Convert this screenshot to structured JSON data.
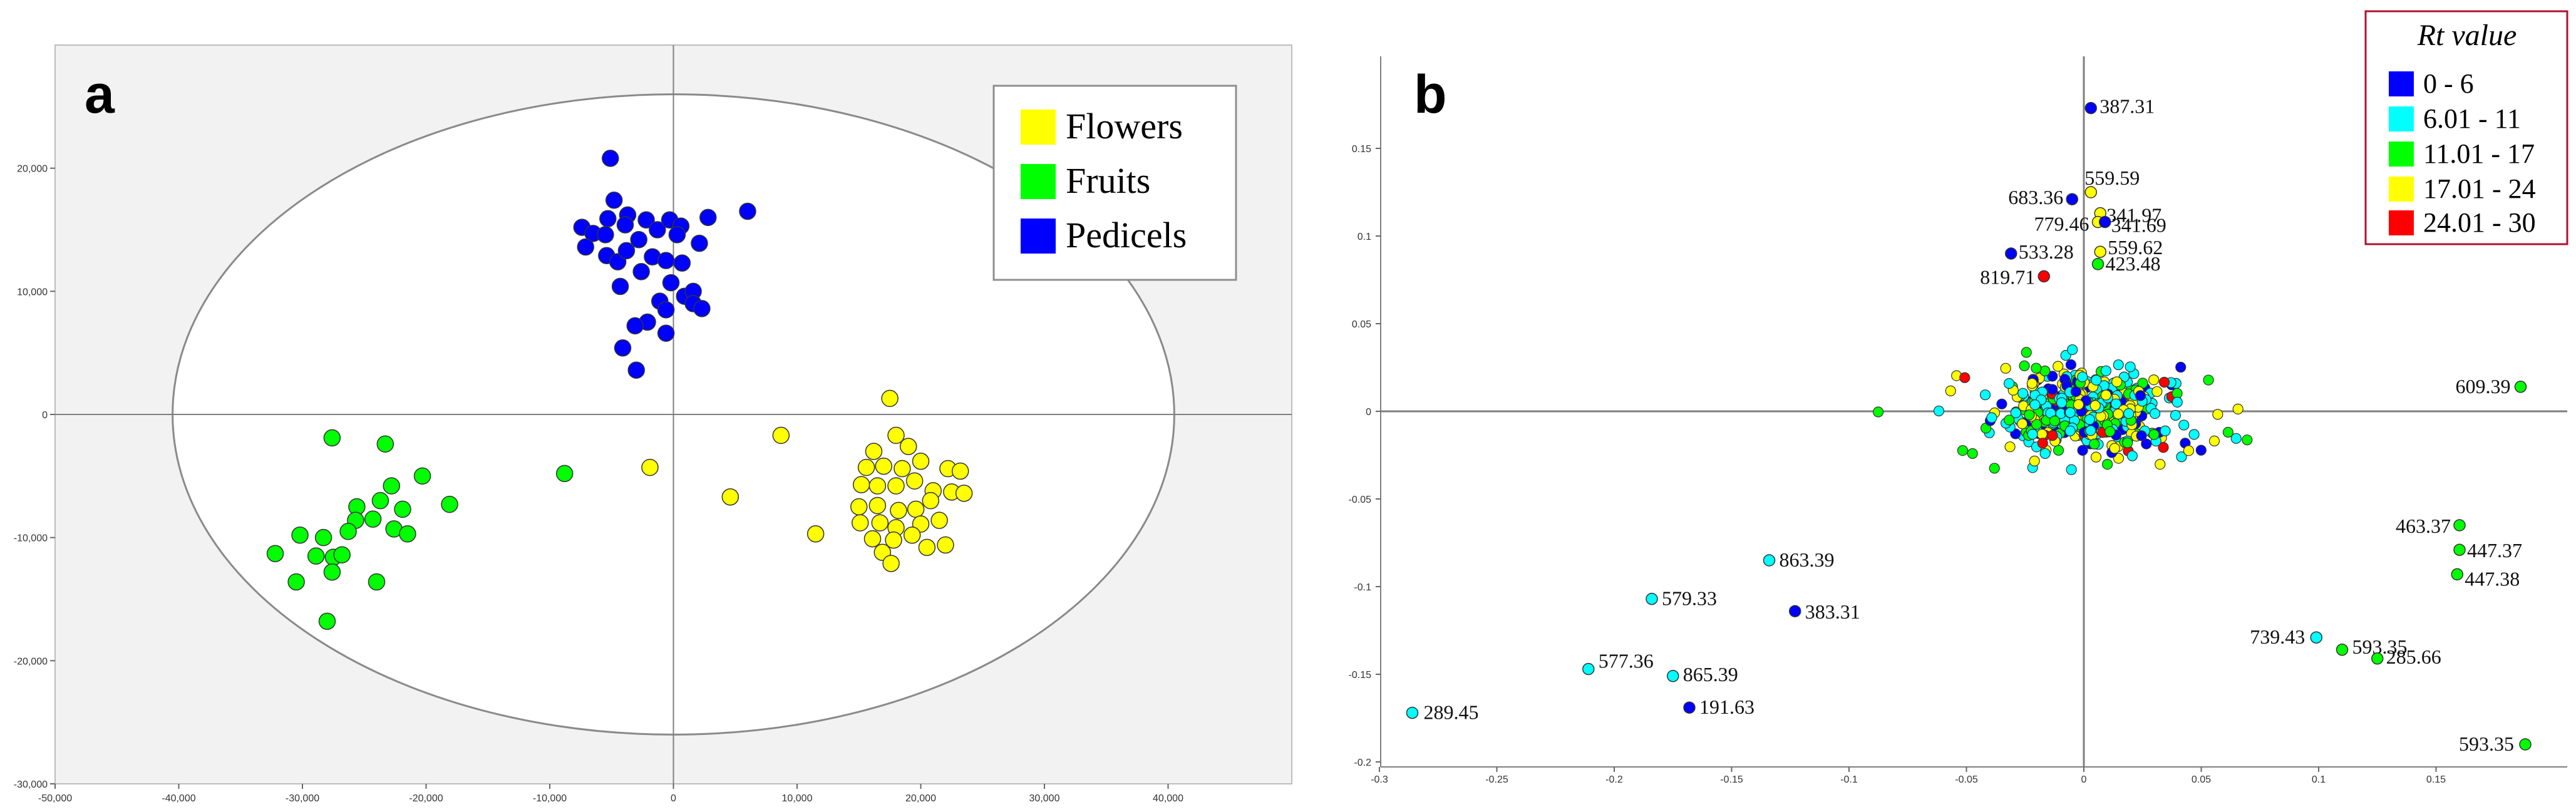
{
  "panels": {
    "a": {
      "label": "a",
      "legend": [
        {
          "name": "Flowers",
          "color": "#ffff00"
        },
        {
          "name": "Fruits",
          "color": "#00ff00"
        },
        {
          "name": "Pedicels",
          "color": "#0000ff"
        }
      ],
      "x_ticks": [
        "-50,000",
        "-40,000",
        "-30,000",
        "-20,000",
        "-10,000",
        "0",
        "10,000",
        "20,000",
        "30,000",
        "40,000"
      ],
      "y_ticks": [
        "20,000",
        "10,000",
        "0",
        "-10,000",
        "-20,000",
        "-30,000"
      ]
    },
    "b": {
      "label": "b",
      "legend_title": "Rt value",
      "legend": [
        {
          "name": "0 - 6",
          "color": "#0000ff"
        },
        {
          "name": "6.01 - 11",
          "color": "#00ffff"
        },
        {
          "name": "11.01 - 17",
          "color": "#00ff00"
        },
        {
          "name": "17.01 - 24",
          "color": "#ffff00"
        },
        {
          "name": "24.01 - 30",
          "color": "#ff0000"
        }
      ],
      "x_ticks": [
        "-0.3",
        "-0.25",
        "-0.2",
        "-0.15",
        "-0.1",
        "-0.05",
        "0",
        "0.05",
        "0.1",
        "0.15"
      ],
      "y_ticks": [
        "0.15",
        "0.1",
        "0.05",
        "0",
        "-0.05",
        "-0.1",
        "-0.15",
        "-0.2"
      ]
    }
  },
  "chart_data": [
    {
      "type": "scatter",
      "panel": "a",
      "title": "",
      "xlabel": "",
      "ylabel": "",
      "xlim": [
        -50000,
        50000
      ],
      "ylim": [
        -30000,
        30000
      ],
      "grid": false,
      "legend_position": "top-right",
      "confidence_ellipse": {
        "center": [
          0,
          0
        ],
        "semi_x": 40500,
        "semi_y": 26000
      },
      "series": [
        {
          "name": "Flowers",
          "color": "#ffff00",
          "points": [
            [
              17500,
              1300
            ],
            [
              18000,
              -1700
            ],
            [
              19000,
              -2600
            ],
            [
              16200,
              -3000
            ],
            [
              15600,
              -4300
            ],
            [
              17000,
              -4200
            ],
            [
              18500,
              -4400
            ],
            [
              20000,
              -3800
            ],
            [
              22200,
              -4400
            ],
            [
              23200,
              -4600
            ],
            [
              15200,
              -5700
            ],
            [
              16500,
              -5800
            ],
            [
              18000,
              -5800
            ],
            [
              19500,
              -5400
            ],
            [
              21000,
              -6200
            ],
            [
              22500,
              -6300
            ],
            [
              23500,
              -6400
            ],
            [
              15000,
              -7500
            ],
            [
              16500,
              -7400
            ],
            [
              18200,
              -7800
            ],
            [
              19600,
              -7700
            ],
            [
              20800,
              -7000
            ],
            [
              15100,
              -8800
            ],
            [
              16700,
              -8800
            ],
            [
              18000,
              -9200
            ],
            [
              20000,
              -8900
            ],
            [
              21500,
              -8600
            ],
            [
              16100,
              -10100
            ],
            [
              17800,
              -10200
            ],
            [
              19300,
              -9800
            ],
            [
              11500,
              -9700
            ],
            [
              16900,
              -11200
            ],
            [
              17600,
              -12100
            ],
            [
              20500,
              -10800
            ],
            [
              22000,
              -10600
            ],
            [
              8700,
              -1700
            ],
            [
              4600,
              -6700
            ],
            [
              -1900,
              -4300
            ]
          ]
        },
        {
          "name": "Fruits",
          "color": "#00ff00",
          "points": [
            [
              -27600,
              -1900
            ],
            [
              -23300,
              -2400
            ],
            [
              -20300,
              -5000
            ],
            [
              -18100,
              -7300
            ],
            [
              -22800,
              -5800
            ],
            [
              -23700,
              -7000
            ],
            [
              -25600,
              -7500
            ],
            [
              -21900,
              -7700
            ],
            [
              -25700,
              -8600
            ],
            [
              -24300,
              -8500
            ],
            [
              -22600,
              -9300
            ],
            [
              -21500,
              -9700
            ],
            [
              -26300,
              -9500
            ],
            [
              -28300,
              -10000
            ],
            [
              -30200,
              -9800
            ],
            [
              -32200,
              -11300
            ],
            [
              -27500,
              -11600
            ],
            [
              -28900,
              -11500
            ],
            [
              -26800,
              -11400
            ],
            [
              -27600,
              -12800
            ],
            [
              -24000,
              -13600
            ],
            [
              -30500,
              -13600
            ],
            [
              -28000,
              -16800
            ],
            [
              -8800,
              -4800
            ]
          ]
        },
        {
          "name": "Pedicels",
          "color": "#0000ff",
          "points": [
            [
              -5100,
              20800
            ],
            [
              -4800,
              17400
            ],
            [
              -5300,
              15900
            ],
            [
              -3700,
              16200
            ],
            [
              -3900,
              15400
            ],
            [
              -2200,
              15800
            ],
            [
              -1300,
              15000
            ],
            [
              -300,
              15800
            ],
            [
              600,
              15300
            ],
            [
              2800,
              16000
            ],
            [
              6000,
              16500
            ],
            [
              -7400,
              15200
            ],
            [
              -6500,
              14700
            ],
            [
              -5500,
              14600
            ],
            [
              -2800,
              14200
            ],
            [
              300,
              14600
            ],
            [
              2100,
              13900
            ],
            [
              -7100,
              13600
            ],
            [
              -5400,
              12900
            ],
            [
              -4500,
              12400
            ],
            [
              -3800,
              13300
            ],
            [
              -1700,
              12800
            ],
            [
              -600,
              12500
            ],
            [
              700,
              12300
            ],
            [
              -2600,
              11600
            ],
            [
              -4300,
              10400
            ],
            [
              -200,
              10700
            ],
            [
              900,
              9600
            ],
            [
              1600,
              10000
            ],
            [
              -1100,
              9200
            ],
            [
              -600,
              8500
            ],
            [
              1600,
              9000
            ],
            [
              2300,
              8600
            ],
            [
              -2100,
              7500
            ],
            [
              -3100,
              7200
            ],
            [
              -600,
              6600
            ],
            [
              -4100,
              5400
            ],
            [
              -3000,
              3600
            ]
          ]
        }
      ]
    },
    {
      "type": "scatter",
      "panel": "b",
      "title": "",
      "xlabel": "",
      "ylabel": "",
      "xlim": [
        -0.3,
        0.2
      ],
      "ylim": [
        -0.2,
        0.2
      ],
      "grid": false,
      "legend_position": "top-right",
      "legend_title": "Rt value",
      "labeled_points": [
        {
          "label": "387.31",
          "x": 0.003,
          "y": 0.173,
          "rt": "0 - 6",
          "color": "#0000ff"
        },
        {
          "label": "559.59",
          "x": 0.003,
          "y": 0.125,
          "rt": "17.01 - 24",
          "color": "#ffff00"
        },
        {
          "label": "683.36",
          "x": -0.005,
          "y": 0.121,
          "rt": "0 - 6",
          "color": "#0000ff"
        },
        {
          "label": "341.97",
          "x": 0.007,
          "y": 0.113,
          "rt": "17.01 - 24",
          "color": "#ffff00"
        },
        {
          "label": "779.46",
          "x": 0.006,
          "y": 0.108,
          "rt": "17.01 - 24",
          "color": "#ffff00"
        },
        {
          "label": "341.69",
          "x": 0.009,
          "y": 0.108,
          "rt": "0 - 6",
          "color": "#0000ff"
        },
        {
          "label": "559.62",
          "x": 0.007,
          "y": 0.091,
          "rt": "17.01 - 24",
          "color": "#ffff00"
        },
        {
          "label": "533.28",
          "x": -0.031,
          "y": 0.09,
          "rt": "0 - 6",
          "color": "#0000ff"
        },
        {
          "label": "423.48",
          "x": 0.006,
          "y": 0.084,
          "rt": "11.01 - 17",
          "color": "#00ff00"
        },
        {
          "label": "819.71",
          "x": -0.017,
          "y": 0.077,
          "rt": "24.01 - 30",
          "color": "#ff0000"
        },
        {
          "label": "609.39",
          "x": 0.186,
          "y": 0.014,
          "rt": "11.01 - 17",
          "color": "#00ff00"
        },
        {
          "label": "463.37",
          "x": 0.16,
          "y": -0.065,
          "rt": "11.01 - 17",
          "color": "#00ff00"
        },
        {
          "label": "447.37",
          "x": 0.16,
          "y": -0.079,
          "rt": "11.01 - 17",
          "color": "#00ff00"
        },
        {
          "label": "447.38",
          "x": 0.159,
          "y": -0.093,
          "rt": "11.01 - 17",
          "color": "#00ff00"
        },
        {
          "label": "863.39",
          "x": -0.134,
          "y": -0.085,
          "rt": "6.01 - 11",
          "color": "#00ffff"
        },
        {
          "label": "579.33",
          "x": -0.184,
          "y": -0.107,
          "rt": "6.01 - 11",
          "color": "#00ffff"
        },
        {
          "label": "383.31",
          "x": -0.123,
          "y": -0.114,
          "rt": "0 - 6",
          "color": "#0000ff"
        },
        {
          "label": "739.43",
          "x": 0.099,
          "y": -0.129,
          "rt": "6.01 - 11",
          "color": "#00ffff"
        },
        {
          "label": "593.35",
          "x": 0.11,
          "y": -0.136,
          "rt": "11.01 - 17",
          "color": "#00ff00"
        },
        {
          "label": "285.66",
          "x": 0.125,
          "y": -0.141,
          "rt": "11.01 - 17",
          "color": "#00ff00"
        },
        {
          "label": "577.36",
          "x": -0.211,
          "y": -0.147,
          "rt": "6.01 - 11",
          "color": "#00ffff"
        },
        {
          "label": "865.39",
          "x": -0.175,
          "y": -0.151,
          "rt": "6.01 - 11",
          "color": "#00ffff"
        },
        {
          "label": "191.63",
          "x": -0.168,
          "y": -0.169,
          "rt": "0 - 6",
          "color": "#0000ff"
        },
        {
          "label": "289.45",
          "x": -0.286,
          "y": -0.172,
          "rt": "6.01 - 11",
          "color": "#00ffff"
        },
        {
          "label": "593.35",
          "x": 0.188,
          "y": -0.19,
          "rt": "11.01 - 17",
          "color": "#00ff00"
        }
      ],
      "unlabeled_cluster": {
        "description_count": 520,
        "center": [
          0.0,
          0.0
        ],
        "spread_x": [
          -0.1,
          0.13
        ],
        "spread_y": [
          -0.1,
          0.07
        ],
        "rt_mix": [
          "0 - 6",
          "6.01 - 11",
          "11.01 - 17",
          "17.01 - 24",
          "24.01 - 30"
        ]
      }
    }
  ]
}
